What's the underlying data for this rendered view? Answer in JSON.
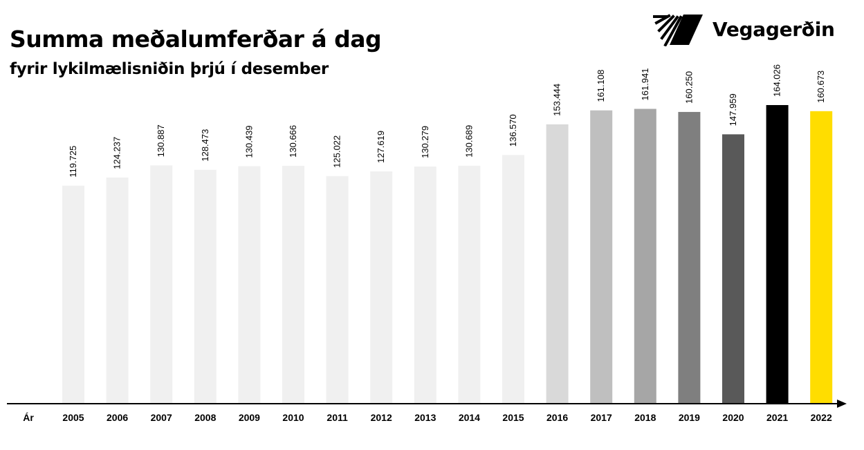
{
  "header": {
    "title": "Summa meðalumferðar á dag",
    "subtitle": "fyrir lykilmælisniðin þrjú í desember"
  },
  "brand": {
    "name": "Vegagerðin",
    "icon": "vegagerdin-logo-icon"
  },
  "chart_data": {
    "type": "bar",
    "title": "Summa meðalumferðar á dag",
    "subtitle": "fyrir lykilmælisniðin þrjú í desember",
    "xlabel": "Ár",
    "ylabel": "",
    "categories": [
      "2005",
      "2006",
      "2007",
      "2008",
      "2009",
      "2010",
      "2011",
      "2012",
      "2013",
      "2014",
      "2015",
      "2016",
      "2017",
      "2018",
      "2019",
      "2020",
      "2021",
      "2022"
    ],
    "values": [
      119725,
      124237,
      130887,
      128473,
      130439,
      130666,
      125022,
      127619,
      130279,
      130689,
      136570,
      153444,
      161108,
      161941,
      160250,
      147959,
      164026,
      160673
    ],
    "labels": [
      "119.725",
      "124.237",
      "130.887",
      "128.473",
      "130.439",
      "130.666",
      "125.022",
      "127.619",
      "130.279",
      "130.689",
      "136.570",
      "153.444",
      "161.108",
      "161.941",
      "160.250",
      "147.959",
      "164.026",
      "160.673"
    ],
    "colors": [
      "#f0f0f0",
      "#f0f0f0",
      "#f0f0f0",
      "#f0f0f0",
      "#f0f0f0",
      "#f0f0f0",
      "#f0f0f0",
      "#f0f0f0",
      "#f0f0f0",
      "#f0f0f0",
      "#f0f0f0",
      "#d9d9d9",
      "#bfbfbf",
      "#a6a6a6",
      "#7f7f7f",
      "#595959",
      "#000000",
      "#ffdd00"
    ],
    "ylim": [
      0,
      168000
    ],
    "grid": false,
    "legend": "none"
  }
}
